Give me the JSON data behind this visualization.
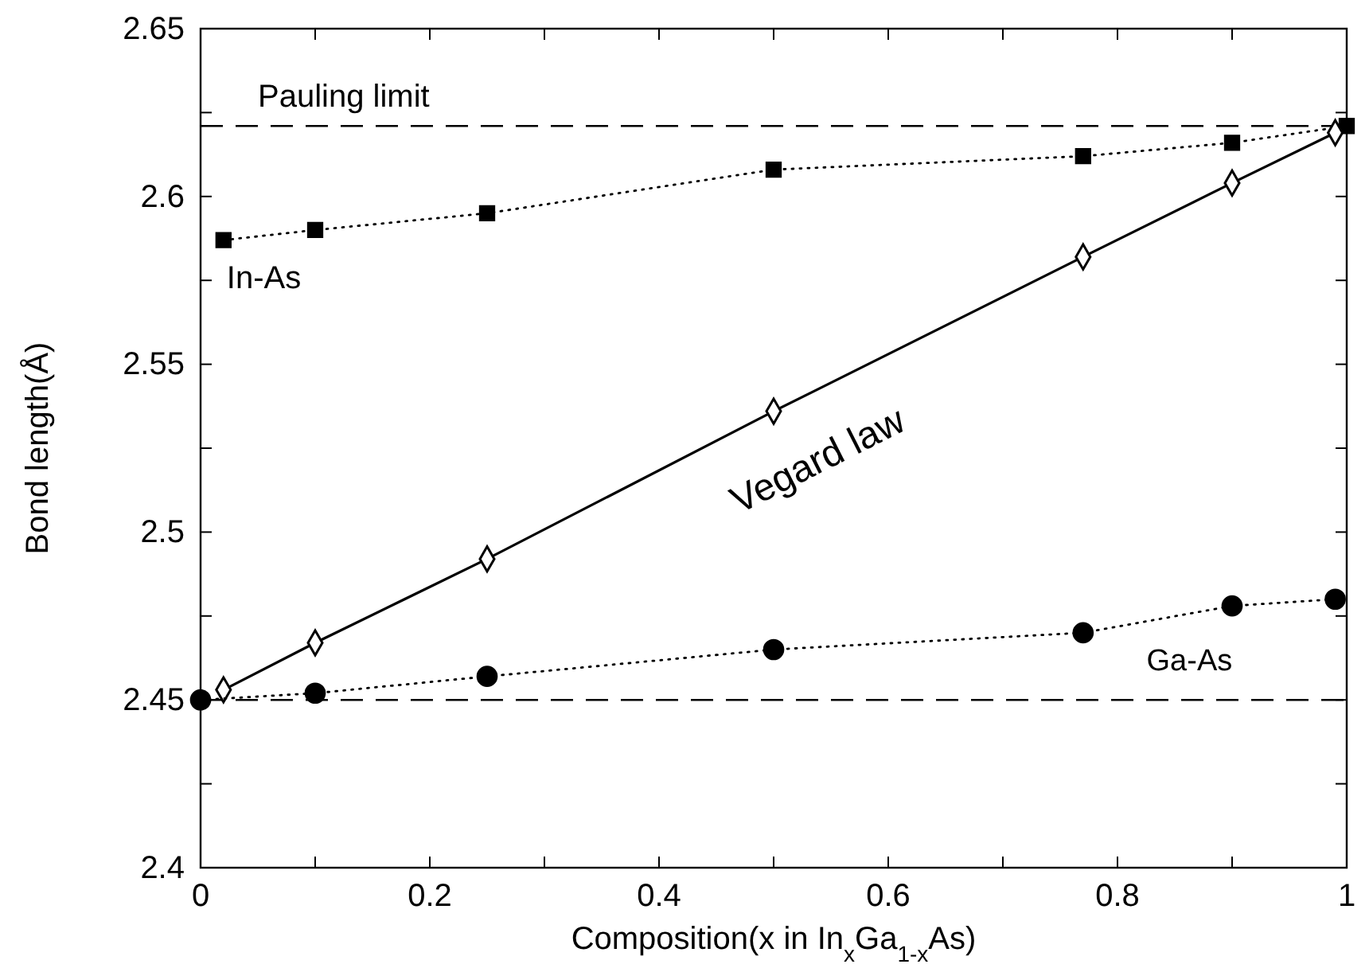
{
  "chart_data": {
    "type": "line",
    "xlabel": "Composition(x in In$_{x}$Ga$_{1-x}$As)",
    "ylabel": "Bond length(Å)",
    "xlim": [
      0,
      1
    ],
    "ylim": [
      2.4,
      2.65
    ],
    "xticks": [
      0,
      {
        "value": 0.1,
        "label": null
      },
      0.2,
      {
        "value": 0.3,
        "label": null
      },
      0.4,
      {
        "value": 0.5,
        "label": null
      },
      0.6,
      {
        "value": 0.7,
        "label": null
      },
      0.8,
      {
        "value": 0.9,
        "label": null
      },
      1
    ],
    "yticks": [
      2.4,
      {
        "value": 2.425,
        "label": null
      },
      2.45,
      {
        "value": 2.475,
        "label": null
      },
      2.5,
      {
        "value": 2.525,
        "label": null
      },
      2.55,
      {
        "value": 2.575,
        "label": null
      },
      2.6,
      {
        "value": 2.625,
        "label": null
      },
      2.65
    ],
    "grid": false,
    "legend": false,
    "series": [
      {
        "name": "In-As",
        "color": "#000000",
        "marker": "square",
        "line_style": "dotted",
        "x": [
          0.02,
          0.1,
          0.25,
          0.5,
          0.77,
          0.9,
          1.0
        ],
        "values": [
          2.587,
          2.59,
          2.595,
          2.608,
          2.612,
          2.616,
          2.621
        ]
      },
      {
        "name": "Vegard law",
        "color": "#000000",
        "marker": "diamond",
        "line_style": "solid",
        "x": [
          0.02,
          0.1,
          0.25,
          0.5,
          0.77,
          0.9,
          0.99
        ],
        "values": [
          2.453,
          2.467,
          2.492,
          2.536,
          2.582,
          2.604,
          2.619
        ]
      },
      {
        "name": "Ga-As",
        "color": "#000000",
        "marker": "circle",
        "line_style": "dotted",
        "x": [
          0,
          0.1,
          0.25,
          0.5,
          0.77,
          0.9,
          0.99
        ],
        "values": [
          2.45,
          2.452,
          2.457,
          2.465,
          2.47,
          2.478,
          2.48
        ]
      }
    ],
    "ref_lines": [
      {
        "axis": "y",
        "value": 2.621,
        "label": "Pauling limit",
        "line_style": "dashed",
        "color": "#000000"
      },
      {
        "axis": "y",
        "value": 2.45,
        "line_style": "dashed",
        "color": "#000000"
      }
    ]
  }
}
